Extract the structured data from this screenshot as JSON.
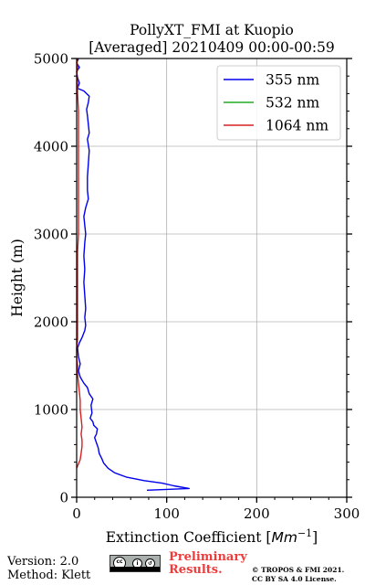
{
  "chart_data": {
    "type": "line",
    "title_line1": "PollyXT_FMI at Kuopio",
    "title_line2": "[Averaged] 20210409 00:00-00:59",
    "xlabel": "Extinction Coefficient [",
    "xlabel_unit": "Mm",
    "xlabel_exp": "−1",
    "xlabel_close": "]",
    "ylabel": "Height (m)",
    "xlim": [
      0,
      300
    ],
    "ylim": [
      0,
      5000
    ],
    "xticks": [
      0,
      100,
      200,
      300
    ],
    "xtick_labels": [
      "0",
      "100",
      "200",
      "300"
    ],
    "yticks": [
      0,
      1000,
      2000,
      3000,
      4000,
      5000
    ],
    "ytick_labels": [
      "0",
      "1000",
      "2000",
      "3000",
      "4000",
      "5000"
    ],
    "grid": true,
    "legend_position": "top-right",
    "series": [
      {
        "name": "355 nm",
        "color": "#0000ee",
        "points": [
          [
            78,
            80
          ],
          [
            125,
            100
          ],
          [
            108,
            130
          ],
          [
            95,
            160
          ],
          [
            75,
            190
          ],
          [
            55,
            230
          ],
          [
            42,
            280
          ],
          [
            35,
            330
          ],
          [
            30,
            390
          ],
          [
            28,
            440
          ],
          [
            25,
            500
          ],
          [
            24,
            560
          ],
          [
            22,
            620
          ],
          [
            20,
            680
          ],
          [
            22,
            720
          ],
          [
            23,
            780
          ],
          [
            19,
            820
          ],
          [
            18,
            860
          ],
          [
            15,
            900
          ],
          [
            17,
            960
          ],
          [
            16,
            1050
          ],
          [
            18,
            1120
          ],
          [
            14,
            1180
          ],
          [
            12,
            1250
          ],
          [
            8,
            1300
          ],
          [
            4,
            1370
          ],
          [
            2,
            1440
          ],
          [
            4,
            1520
          ],
          [
            2,
            1600
          ],
          [
            1,
            1700
          ],
          [
            3,
            1760
          ],
          [
            6,
            1820
          ],
          [
            9,
            1900
          ],
          [
            10,
            1960
          ],
          [
            9,
            2050
          ],
          [
            10,
            2150
          ],
          [
            9,
            2300
          ],
          [
            8,
            2450
          ],
          [
            9,
            2600
          ],
          [
            8,
            2750
          ],
          [
            9,
            2900
          ],
          [
            10,
            3000
          ],
          [
            9,
            3100
          ],
          [
            8,
            3200
          ],
          [
            10,
            3300
          ],
          [
            13,
            3400
          ],
          [
            12,
            3500
          ],
          [
            12,
            3650
          ],
          [
            13,
            3800
          ],
          [
            14,
            3950
          ],
          [
            12,
            4080
          ],
          [
            14,
            4150
          ],
          [
            13,
            4250
          ],
          [
            12,
            4350
          ],
          [
            11,
            4420
          ],
          [
            13,
            4500
          ],
          [
            14,
            4570
          ],
          [
            8,
            4630
          ],
          [
            1,
            4660
          ],
          [
            3,
            4720
          ],
          [
            1,
            4780
          ],
          [
            0,
            4850
          ],
          [
            3,
            4900
          ],
          [
            0,
            4950
          ],
          [
            2,
            5000
          ]
        ]
      },
      {
        "name": "532 nm",
        "color": "#22aa22",
        "points": []
      },
      {
        "name": "1064 nm",
        "color": "#d62020",
        "points": [
          [
            0,
            330
          ],
          [
            2,
            380
          ],
          [
            4,
            430
          ],
          [
            5,
            500
          ],
          [
            6,
            580
          ],
          [
            6,
            650
          ],
          [
            5,
            720
          ],
          [
            6,
            800
          ],
          [
            5,
            900
          ],
          [
            4,
            1000
          ],
          [
            4,
            1100
          ],
          [
            3,
            1200
          ],
          [
            2,
            1300
          ],
          [
            1,
            1400
          ],
          [
            1,
            1500
          ],
          [
            0,
            1600
          ],
          [
            0,
            1700
          ],
          [
            1,
            1800
          ],
          [
            1,
            2000
          ],
          [
            1,
            2200
          ],
          [
            1,
            2400
          ],
          [
            1,
            2600
          ],
          [
            1,
            2800
          ],
          [
            2,
            3000
          ],
          [
            2,
            3200
          ],
          [
            2,
            3400
          ],
          [
            2,
            3600
          ],
          [
            2,
            3800
          ],
          [
            2,
            4000
          ],
          [
            2,
            4200
          ],
          [
            2,
            4400
          ],
          [
            1,
            4600
          ],
          [
            1,
            4700
          ],
          [
            0,
            4800
          ],
          [
            1,
            4900
          ],
          [
            0,
            5000
          ]
        ]
      }
    ]
  },
  "footer": {
    "version": "Version: 2.0",
    "method": "Method: Klett",
    "preliminary_line1": "Preliminary",
    "preliminary_line2": "Results.",
    "copyright_line1": "© TROPOS & FMI 2021.",
    "copyright_line2": "CC BY SA 4.0 License.",
    "license_icon": "cc-by-sa-badge"
  }
}
